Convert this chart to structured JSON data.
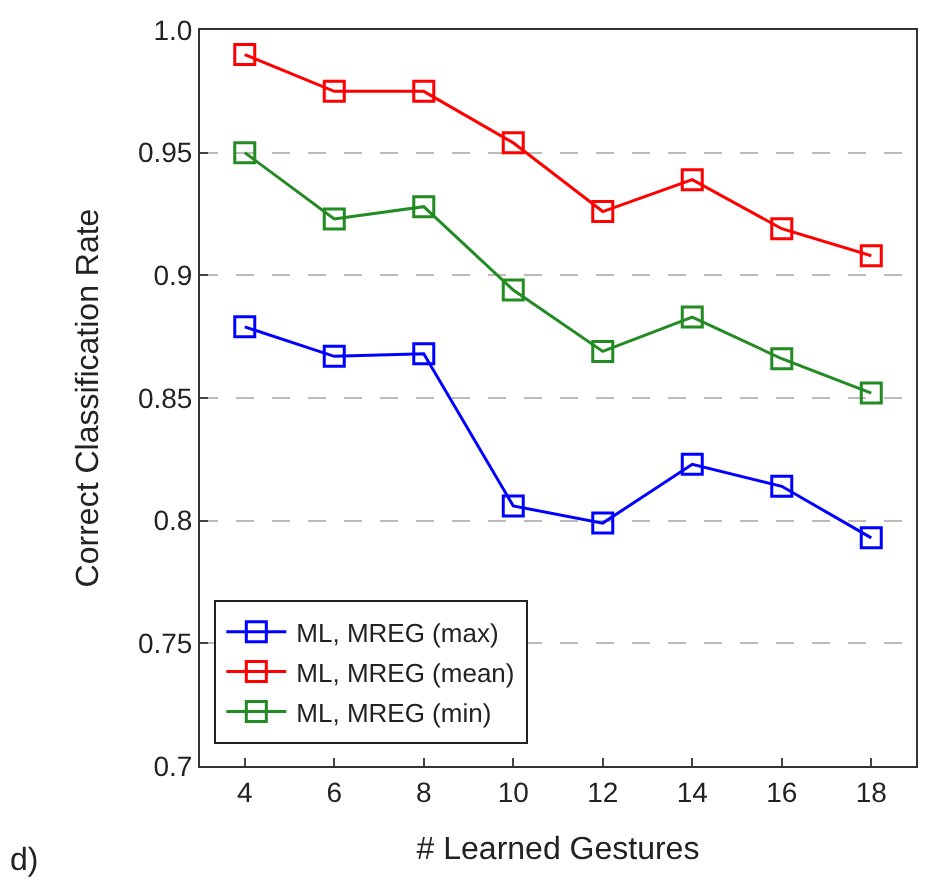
{
  "chart_data": {
    "type": "line",
    "xlabel": "# Learned Gestures",
    "ylabel": "Correct Classification Rate",
    "x": [
      4,
      6,
      8,
      10,
      12,
      14,
      16,
      18
    ],
    "series": [
      {
        "name": "ML, MREG (max)",
        "color": "#0000ff",
        "values": [
          0.879,
          0.867,
          0.868,
          0.806,
          0.799,
          0.823,
          0.814,
          0.793
        ]
      },
      {
        "name": "ML, MREG (mean)",
        "color": "#ff0000",
        "values": [
          0.99,
          0.975,
          0.975,
          0.954,
          0.926,
          0.939,
          0.919,
          0.908
        ]
      },
      {
        "name": "ML, MREG (min)",
        "color": "#228b22",
        "values": [
          0.95,
          0.923,
          0.928,
          0.894,
          0.869,
          0.883,
          0.866,
          0.852
        ]
      }
    ],
    "xlim": [
      3,
      19
    ],
    "xticks": [
      4,
      6,
      8,
      10,
      12,
      14,
      16,
      18
    ],
    "ylim": [
      0.7,
      1.0
    ],
    "yticks": [
      0.7,
      0.75,
      0.8,
      0.85,
      {
        "value": 0.9,
        "label": "0.9"
      },
      0.95,
      {
        "value": 1.0,
        "label": "1.0"
      }
    ],
    "grid": "y",
    "legend": "bottom left",
    "marker": "square",
    "line_style": "solid",
    "annotations": [
      "d)"
    ]
  }
}
